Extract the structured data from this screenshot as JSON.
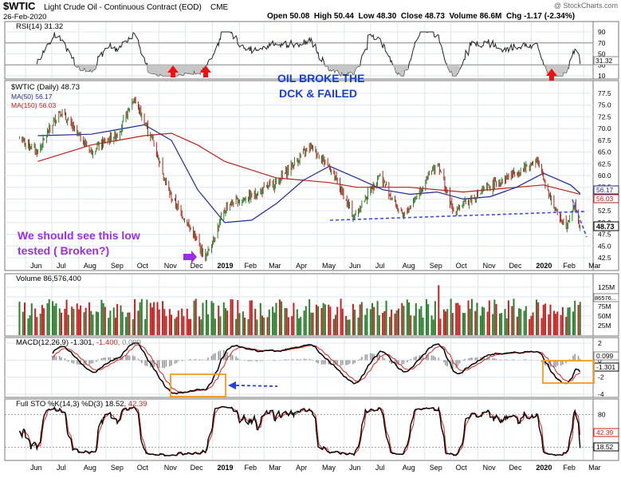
{
  "header": {
    "symbol": "$WTIC",
    "description": "Light Crude Oil - Continuous Contract (EOD)",
    "exchange": "CME",
    "date": "26-Feb-2020",
    "copyright": "@ StockCharts.com",
    "ohlc_line": "Open 50.08  High 50.44  Low 48.30  Close 48.73  Volume 86.6M  Chg -1.17 (-2.34%)",
    "open": "50.08",
    "high": "50.44",
    "low": "48.30",
    "close": "48.73",
    "volume": "86.6M",
    "change": "-1.17 (-2.34%)"
  },
  "colors": {
    "price": "#000000",
    "ma50": "#1c2a8c",
    "ma150": "#b2231a",
    "annotation_blue": "#1a3fd1",
    "annotation_purple": "#9a2ee0",
    "arrow_red": "#ee1111",
    "box_orange": "#f59a1e",
    "volume_up": "#2f7d2f",
    "volume_down": "#c62020"
  },
  "months": [
    "Jun",
    "Jul",
    "Aug",
    "Sep",
    "Oct",
    "Nov",
    "Dec",
    "2019",
    "Feb",
    "Mar",
    "Apr",
    "May",
    "Jun",
    "Jul",
    "Aug",
    "Sep",
    "Oct",
    "Nov",
    "Dec",
    "2020",
    "Feb",
    "Mar"
  ],
  "panels": {
    "rsi": {
      "label": "RSI(14) 31.32",
      "ticks": [
        "90",
        "70",
        "50",
        "30",
        "10"
      ],
      "value_tag": "31.32"
    },
    "price": {
      "label": "$WTIC (Daily) 48.73",
      "ma50_label": "MA(50) 56.17",
      "ma150_label": "MA(150) 56.03",
      "ticks": [
        "77.5",
        "75.0",
        "72.5",
        "70.0",
        "67.5",
        "65.0",
        "62.5",
        "60.0",
        "57.5",
        "55.0",
        "52.5",
        "50.0",
        "47.5",
        "45.0",
        "42.5"
      ],
      "tag_ma50": "56.17",
      "tag_ma150": "56.03",
      "tag_close": "48.73"
    },
    "volume": {
      "label": "Volume 86,576,400",
      "ticks": [
        "125M",
        "100M",
        "75M",
        "50M",
        "25M"
      ],
      "value_tag": "86576..."
    },
    "macd": {
      "label_black": "MACD(12,26,9) -1.301,",
      "label_red": "-1.400,",
      "label_gray": "0.099",
      "ticks": [
        "2",
        "0",
        "-2",
        "-4"
      ],
      "tag_hist": "0.099",
      "tag_macd": "-1.301"
    },
    "sto": {
      "label_black": "Full STO %K(14,3) %D(3) 18.52,",
      "label_red": "42.39",
      "ticks": [
        "80",
        "20"
      ],
      "tag_d": "42.39",
      "tag_k": "18.52"
    }
  },
  "annotations": {
    "oil_line1": "OIL BROKE THE",
    "oil_line2": "DCK & FAILED",
    "low_line1": "We should see this low",
    "low_line2": "tested ( Broken?)"
  },
  "chart_data": {
    "type": "line",
    "title": "$WTIC Light Crude Oil - Continuous Contract (EOD)",
    "x_range": [
      "2018-05",
      "2020-02-26"
    ],
    "series": [
      {
        "name": "$WTIC (Daily) 48.73",
        "points": [
          [
            "2018-05-25",
            67.9
          ],
          [
            "2018-06-15",
            65.1
          ],
          [
            "2018-07-10",
            73.8
          ],
          [
            "2018-08-15",
            65.2
          ],
          [
            "2018-09-15",
            69.0
          ],
          [
            "2018-10-03",
            76.4
          ],
          [
            "2018-10-25",
            67.3
          ],
          [
            "2018-11-13",
            56.0
          ],
          [
            "2018-11-30",
            50.9
          ],
          [
            "2018-12-24",
            42.5
          ],
          [
            "2019-01-18",
            53.8
          ],
          [
            "2019-02-15",
            55.6
          ],
          [
            "2019-03-15",
            58.5
          ],
          [
            "2019-04-23",
            66.3
          ],
          [
            "2019-05-15",
            62.0
          ],
          [
            "2019-06-12",
            51.1
          ],
          [
            "2019-07-11",
            60.2
          ],
          [
            "2019-08-07",
            51.1
          ],
          [
            "2019-09-16",
            62.9
          ],
          [
            "2019-10-03",
            52.4
          ],
          [
            "2019-11-15",
            57.7
          ],
          [
            "2019-12-20",
            61.2
          ],
          [
            "2020-01-07",
            63.3
          ],
          [
            "2020-01-31",
            51.6
          ],
          [
            "2020-02-10",
            49.6
          ],
          [
            "2020-02-20",
            53.8
          ],
          [
            "2020-02-26",
            48.73
          ]
        ]
      },
      {
        "name": "MA(50) 56.17",
        "points": [
          [
            "2018-06",
            68.5
          ],
          [
            "2018-08",
            68.8
          ],
          [
            "2018-10",
            70.8
          ],
          [
            "2018-11",
            67.5
          ],
          [
            "2018-12",
            57.0
          ],
          [
            "2019-01",
            50.0
          ],
          [
            "2019-02",
            50.5
          ],
          [
            "2019-03",
            54.0
          ],
          [
            "2019-04",
            59.0
          ],
          [
            "2019-05",
            62.0
          ],
          [
            "2019-06",
            59.5
          ],
          [
            "2019-07",
            57.0
          ],
          [
            "2019-08",
            56.0
          ],
          [
            "2019-09",
            56.5
          ],
          [
            "2019-10",
            55.0
          ],
          [
            "2019-11",
            55.5
          ],
          [
            "2019-12",
            57.5
          ],
          [
            "2020-01",
            60.5
          ],
          [
            "2020-02",
            58.0
          ],
          [
            "2020-02-26",
            56.17
          ]
        ]
      },
      {
        "name": "MA(150) 56.03",
        "points": [
          [
            "2018-06",
            63.0
          ],
          [
            "2018-08",
            66.5
          ],
          [
            "2018-10",
            68.5
          ],
          [
            "2018-11",
            69.0
          ],
          [
            "2018-12",
            66.5
          ],
          [
            "2019-01",
            63.0
          ],
          [
            "2019-03",
            59.5
          ],
          [
            "2019-05",
            58.5
          ],
          [
            "2019-06",
            57.5
          ],
          [
            "2019-08",
            57.5
          ],
          [
            "2019-10",
            56.5
          ],
          [
            "2019-12",
            57.5
          ],
          [
            "2020-01",
            58.0
          ],
          [
            "2020-02-26",
            56.03
          ]
        ]
      }
    ],
    "annotations": [
      "OIL BROKE THE DCK & FAILED",
      "We should see this low tested ( Broken?)"
    ],
    "indicators": {
      "rsi14": 31.32,
      "volume": 86576400,
      "macd": {
        "macd": -1.301,
        "signal": -1.4,
        "histogram": 0.099
      },
      "full_sto": {
        "k": 18.52,
        "d": 42.39
      }
    },
    "ylim": [
      42.5,
      77.5
    ],
    "grid": true
  }
}
